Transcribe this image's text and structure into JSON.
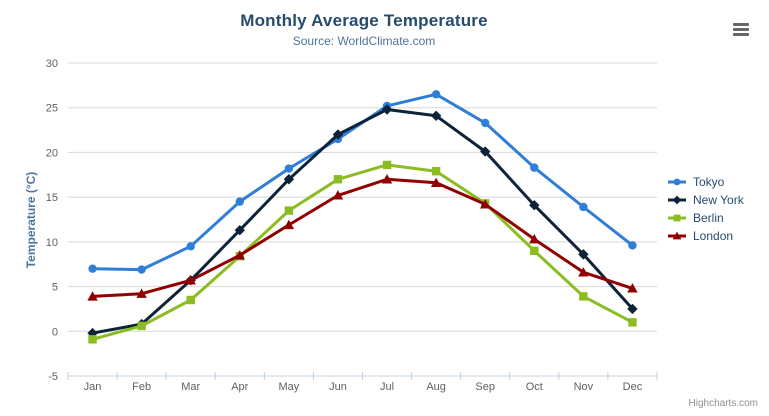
{
  "chart_data": {
    "type": "line",
    "title": "Monthly Average Temperature",
    "subtitle": "Source: WorldClimate.com",
    "xlabel": "",
    "ylabel": "Temperature (°C)",
    "ylim": [
      -5,
      30
    ],
    "ytick_step": 5,
    "ytick_labels": [
      "-5",
      "0",
      "5",
      "10",
      "15",
      "20",
      "25",
      "30"
    ],
    "grid": true,
    "legend_position": "right",
    "categories": [
      "Jan",
      "Feb",
      "Mar",
      "Apr",
      "May",
      "Jun",
      "Jul",
      "Aug",
      "Sep",
      "Oct",
      "Nov",
      "Dec"
    ],
    "series": [
      {
        "name": "Tokyo",
        "color": "#2f7ed8",
        "marker": "circle",
        "values": [
          7.0,
          6.9,
          9.5,
          14.5,
          18.2,
          21.5,
          25.2,
          26.5,
          23.3,
          18.3,
          13.9,
          9.6
        ]
      },
      {
        "name": "New York",
        "color": "#0d233a",
        "marker": "diamond",
        "values": [
          -0.2,
          0.8,
          5.7,
          11.3,
          17.0,
          22.0,
          24.8,
          24.1,
          20.1,
          14.1,
          8.6,
          2.5
        ]
      },
      {
        "name": "Berlin",
        "color": "#8bbc21",
        "marker": "square",
        "values": [
          -0.9,
          0.6,
          3.5,
          8.4,
          13.5,
          17.0,
          18.6,
          17.9,
          14.3,
          9.0,
          3.9,
          1.0
        ]
      },
      {
        "name": "London",
        "color": "#910000",
        "marker": "triangle",
        "values": [
          3.9,
          4.2,
          5.7,
          8.5,
          11.9,
          15.2,
          17.0,
          16.6,
          14.2,
          10.3,
          6.6,
          4.8
        ]
      }
    ],
    "colors": {
      "title": "#274b6d",
      "subtitle": "#4d759e",
      "axis_labels": "#606060",
      "gridline": "#d8d8d8",
      "axis_line": "#c0d0e0",
      "legend_text": "#274b6d"
    }
  },
  "credits": {
    "label": "Highcharts.com"
  },
  "icons": {
    "context_menu": "hamburger-icon"
  }
}
